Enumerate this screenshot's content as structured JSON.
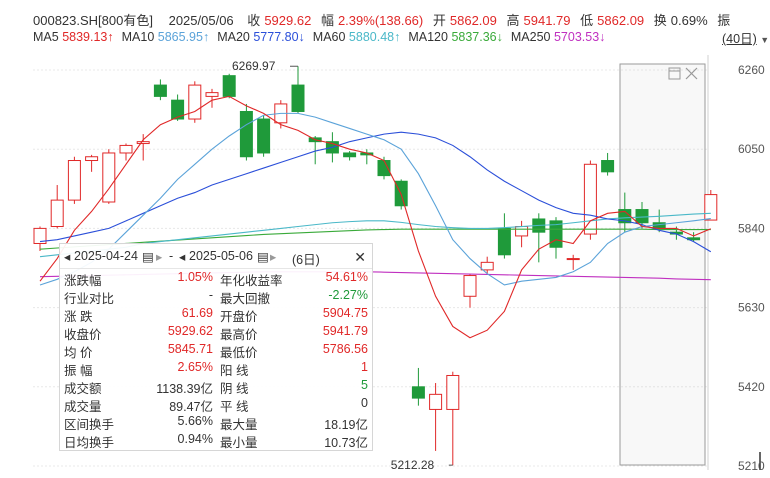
{
  "header": {
    "code_name": "000823.SH[800有色]",
    "date": "2025/05/06",
    "close_label": "收",
    "close_value": "5929.62",
    "change_label": "幅",
    "change_value": "2.39%(138.66)",
    "open_label": "开",
    "open_value": "5862.09",
    "high_label": "高",
    "high_value": "5941.79",
    "low_label": "低",
    "low_value": "5862.09",
    "turnover_label": "换",
    "turnover_value": "0.69%",
    "amp_label": "振"
  },
  "ma_line": [
    {
      "label": "MA5",
      "value": "5839.13↑",
      "color": "#e02828"
    },
    {
      "label": "MA10",
      "value": "5865.95↑",
      "color": "#5ba3d9"
    },
    {
      "label": "MA20",
      "value": "5777.80↓",
      "color": "#2b4fd9"
    },
    {
      "label": "MA60",
      "value": "5880.48↑",
      "color": "#4ab8c8"
    },
    {
      "label": "MA120",
      "value": "5837.36↓",
      "color": "#3aaa3a"
    },
    {
      "label": "MA250",
      "value": "5703.53↓",
      "color": "#c030c0"
    }
  ],
  "period_label": "(40日)",
  "colors": {
    "up": "#e02828",
    "down": "#1f9a3a"
  },
  "chart_data": {
    "type": "candlestick",
    "ylim": [
      5200,
      6290
    ],
    "yticks": [
      6260,
      6050,
      5840,
      5630,
      5420,
      5210
    ],
    "annotations": {
      "max": "6269.97",
      "min": "5212.28"
    },
    "candles": [
      {
        "o": 5800,
        "c": 5840,
        "h": 5845,
        "l": 5780
      },
      {
        "o": 5845,
        "c": 5915,
        "h": 5955,
        "l": 5840
      },
      {
        "o": 5915,
        "c": 6020,
        "h": 6030,
        "l": 5905
      },
      {
        "o": 6020,
        "c": 6030,
        "h": 6035,
        "l": 5990
      },
      {
        "o": 5910,
        "c": 6040,
        "h": 6050,
        "l": 5905
      },
      {
        "o": 6040,
        "c": 6060,
        "h": 6065,
        "l": 6020
      },
      {
        "o": 6065,
        "c": 6070,
        "h": 6090,
        "l": 6020
      },
      {
        "o": 6220,
        "c": 6190,
        "h": 6235,
        "l": 6180
      },
      {
        "o": 6180,
        "c": 6130,
        "h": 6195,
        "l": 6125
      },
      {
        "o": 6130,
        "c": 6220,
        "h": 6230,
        "l": 6120
      },
      {
        "o": 6190,
        "c": 6200,
        "h": 6210,
        "l": 6160
      },
      {
        "o": 6245,
        "c": 6190,
        "h": 6250,
        "l": 6185
      },
      {
        "o": 6150,
        "c": 6030,
        "h": 6170,
        "l": 6020
      },
      {
        "o": 6130,
        "c": 6040,
        "h": 6140,
        "l": 6030
      },
      {
        "o": 6120,
        "c": 6170,
        "h": 6180,
        "l": 6105
      },
      {
        "o": 6220,
        "c": 6150,
        "h": 6270,
        "l": 6145
      },
      {
        "o": 6080,
        "c": 6070,
        "h": 6085,
        "l": 6010
      },
      {
        "o": 6070,
        "c": 6040,
        "h": 6095,
        "l": 6015
      },
      {
        "o": 6040,
        "c": 6030,
        "h": 6045,
        "l": 6020
      },
      {
        "o": 6040,
        "c": 6035,
        "h": 6050,
        "l": 6010
      },
      {
        "o": 6020,
        "c": 5980,
        "h": 6030,
        "l": 5970
      },
      {
        "o": 5965,
        "c": 5900,
        "h": 5970,
        "l": 5890
      },
      {
        "o": 5420,
        "c": 5390,
        "h": 5470,
        "l": 5370
      },
      {
        "o": 5360,
        "c": 5400,
        "h": 5430,
        "l": 5250
      },
      {
        "o": 5360,
        "c": 5450,
        "h": 5460,
        "l": 5212
      },
      {
        "o": 5660,
        "c": 5715,
        "h": 5720,
        "l": 5630
      },
      {
        "o": 5730,
        "c": 5750,
        "h": 5765,
        "l": 5720
      },
      {
        "o": 5840,
        "c": 5770,
        "h": 5880,
        "l": 5760
      },
      {
        "o": 5820,
        "c": 5845,
        "h": 5860,
        "l": 5790
      },
      {
        "o": 5865,
        "c": 5830,
        "h": 5880,
        "l": 5750
      },
      {
        "o": 5860,
        "c": 5790,
        "h": 5870,
        "l": 5760
      },
      {
        "o": 5760,
        "c": 5760,
        "h": 5770,
        "l": 5730
      },
      {
        "o": 5825,
        "c": 6010,
        "h": 6020,
        "l": 5810
      },
      {
        "o": 6020,
        "c": 5990,
        "h": 6040,
        "l": 5980
      },
      {
        "o": 5890,
        "c": 5855,
        "h": 5935,
        "l": 5830
      },
      {
        "o": 5890,
        "c": 5855,
        "h": 5910,
        "l": 5840
      },
      {
        "o": 5855,
        "c": 5840,
        "h": 5890,
        "l": 5830
      },
      {
        "o": 5830,
        "c": 5825,
        "h": 5845,
        "l": 5810
      },
      {
        "o": 5815,
        "c": 5810,
        "h": 5830,
        "l": 5805
      },
      {
        "o": 5862.09,
        "c": 5929.62,
        "h": 5941.79,
        "l": 5862.09
      }
    ],
    "ma5": [
      5700,
      5760,
      5835,
      5885,
      5945,
      6010,
      6075,
      6115,
      6135,
      6150,
      6180,
      6190,
      6165,
      6145,
      6115,
      6100,
      6075,
      6065,
      6050,
      6040,
      6020,
      5930,
      5780,
      5660,
      5580,
      5550,
      5570,
      5620,
      5730,
      5785,
      5810,
      5800,
      5860,
      5880,
      5885,
      5845,
      5840,
      5840,
      5820,
      5839
    ],
    "ma10": [
      5690,
      5705,
      5725,
      5750,
      5785,
      5830,
      5875,
      5920,
      5970,
      6010,
      6050,
      6085,
      6115,
      6140,
      6145,
      6145,
      6135,
      6120,
      6105,
      6090,
      6075,
      6050,
      5985,
      5900,
      5810,
      5760,
      5720,
      5690,
      5700,
      5705,
      5710,
      5725,
      5750,
      5800,
      5830,
      5845,
      5850,
      5855,
      5860,
      5866
    ],
    "ma20": [
      5805,
      5810,
      5820,
      5830,
      5840,
      5860,
      5880,
      5900,
      5920,
      5935,
      5955,
      5970,
      5985,
      6000,
      6015,
      6030,
      6045,
      6055,
      6070,
      6080,
      6090,
      6095,
      6090,
      6080,
      6060,
      6030,
      5995,
      5965,
      5940,
      5915,
      5895,
      5880,
      5875,
      5865,
      5860,
      5850,
      5835,
      5825,
      5805,
      5778
    ],
    "ma60": [
      5765,
      5770,
      5775,
      5780,
      5785,
      5790,
      5800,
      5805,
      5810,
      5815,
      5820,
      5825,
      5830,
      5835,
      5840,
      5845,
      5850,
      5855,
      5858,
      5860,
      5860,
      5856,
      5850,
      5845,
      5842,
      5840,
      5840,
      5842,
      5845,
      5848,
      5850,
      5855,
      5860,
      5865,
      5868,
      5870,
      5872,
      5875,
      5878,
      5880
    ],
    "ma120": [
      5785,
      5788,
      5791,
      5794,
      5797,
      5800,
      5803,
      5806,
      5809,
      5812,
      5815,
      5818,
      5821,
      5824,
      5826,
      5828,
      5830,
      5832,
      5834,
      5836,
      5837,
      5838,
      5838,
      5838,
      5838,
      5838,
      5838,
      5838,
      5838,
      5838,
      5838,
      5838,
      5838,
      5838,
      5838,
      5838,
      5837,
      5837,
      5837,
      5837
    ],
    "ma250": [
      5712,
      5713,
      5714,
      5715,
      5716,
      5717,
      5718,
      5719,
      5720,
      5721,
      5722,
      5723,
      5724,
      5725,
      5725,
      5725,
      5725,
      5725,
      5725,
      5725,
      5724,
      5723,
      5722,
      5721,
      5720,
      5719,
      5718,
      5717,
      5716,
      5715,
      5714,
      5713,
      5712,
      5711,
      5710,
      5709,
      5708,
      5706,
      5705,
      5704
    ],
    "selected_range": [
      35,
      39
    ]
  },
  "panel": {
    "start_date": "2025-04-24",
    "dash": "-",
    "end_date": "2025-05-06",
    "days": "(6日)",
    "rows": [
      {
        "l1": "涨跌幅",
        "v1": "1.05%",
        "c1": "up",
        "l2": "年化收益率",
        "v2": "54.61%",
        "c2": "up"
      },
      {
        "l1": "行业对比",
        "v1": "-",
        "c1": "blk",
        "l2": "最大回撤",
        "v2": "-2.27%",
        "c2": "dn"
      },
      {
        "l1": "涨 跌",
        "v1": "61.69",
        "c1": "up",
        "l2": "开盘价",
        "v2": "5904.75",
        "c2": "up"
      },
      {
        "l1": "收盘价",
        "v1": "5929.62",
        "c1": "up",
        "l2": "最高价",
        "v2": "5941.79",
        "c2": "up"
      },
      {
        "l1": "均 价",
        "v1": "5845.71",
        "c1": "up",
        "l2": "最低价",
        "v2": "5786.56",
        "c2": "up"
      },
      {
        "l1": "振 幅",
        "v1": "2.65%",
        "c1": "up",
        "l2": "阳 线",
        "v2": "1",
        "c2": "up"
      },
      {
        "l1": "成交额",
        "v1": "1138.39亿",
        "c1": "blk",
        "l2": "阴 线",
        "v2": "5",
        "c2": "dn"
      },
      {
        "l1": "成交量",
        "v1": "89.47亿",
        "c1": "blk",
        "l2": "平 线",
        "v2": "0",
        "c2": "blk"
      },
      {
        "l1": "区间换手",
        "v1": "5.66%",
        "c1": "blk",
        "l2": "最大量",
        "v2": "18.19亿",
        "c2": "blk"
      },
      {
        "l1": "日均换手",
        "v1": "0.94%",
        "c1": "blk",
        "l2": "最小量",
        "v2": "10.73亿",
        "c2": "blk"
      }
    ]
  }
}
